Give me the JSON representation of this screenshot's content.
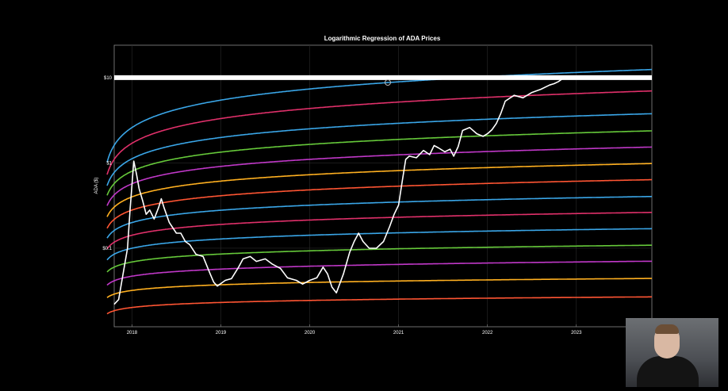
{
  "chart_data": {
    "type": "line",
    "title": "Logarithmic Regression of ADA Prices",
    "xlabel": "",
    "ylabel": "ADA ($)",
    "yscale": "log",
    "xlim": [
      2017.8,
      2023.85
    ],
    "ylim": [
      0.012,
      24
    ],
    "x_ticks": [
      "2018",
      "2019",
      "2020",
      "2021",
      "2022",
      "2023"
    ],
    "y_ticks": [
      "$0.1",
      "$1",
      "$10"
    ],
    "grid": true,
    "background": "#000000",
    "highlight_line": {
      "y": 10,
      "color": "#ffffff"
    },
    "bands": [
      {
        "color": "#ff5533",
        "y_2018": 0.0202,
        "y_2023": 0.0265
      },
      {
        "color": "#ffb020",
        "y_2018": 0.032,
        "y_2023": 0.0435
      },
      {
        "color": "#c038c8",
        "y_2018": 0.047,
        "y_2023": 0.069
      },
      {
        "color": "#66c93a",
        "y_2018": 0.069,
        "y_2023": 0.106
      },
      {
        "color": "#3aa6e8",
        "y_2018": 0.1,
        "y_2023": 0.165
      },
      {
        "color": "#e0306a",
        "y_2018": 0.142,
        "y_2023": 0.255
      },
      {
        "color": "#3aa6e8",
        "y_2018": 0.2,
        "y_2023": 0.39
      },
      {
        "color": "#ff5533",
        "y_2018": 0.28,
        "y_2023": 0.61
      },
      {
        "color": "#ffb020",
        "y_2018": 0.4,
        "y_2023": 0.94
      },
      {
        "color": "#c038c8",
        "y_2018": 0.57,
        "y_2023": 1.46
      },
      {
        "color": "#66c93a",
        "y_2018": 0.8,
        "y_2023": 2.25
      },
      {
        "color": "#3aa6e8",
        "y_2018": 1.12,
        "y_2023": 3.55
      },
      {
        "color": "#e0306a",
        "y_2018": 1.7,
        "y_2023": 6.5
      },
      {
        "color": "#3aa6e8",
        "y_2018": 2.6,
        "y_2023": 11.5
      }
    ],
    "series": [
      {
        "color": "#ffffff",
        "x": [
          2017.8,
          2017.85,
          2017.9,
          2017.95,
          2017.98,
          2018.0,
          2018.02,
          2018.05,
          2018.08,
          2018.12,
          2018.16,
          2018.2,
          2018.25,
          2018.3,
          2018.33,
          2018.36,
          2018.42,
          2018.5,
          2018.55,
          2018.6,
          2018.65,
          2018.72,
          2018.8,
          2018.88,
          2018.92,
          2018.96,
          2019.05,
          2019.12,
          2019.2,
          2019.25,
          2019.33,
          2019.4,
          2019.5,
          2019.58,
          2019.67,
          2019.75,
          2019.85,
          2019.92,
          2020.0,
          2020.08,
          2020.15,
          2020.2,
          2020.25,
          2020.3,
          2020.38,
          2020.45,
          2020.5,
          2020.55,
          2020.6,
          2020.67,
          2020.75,
          2020.83,
          2020.9,
          2020.95,
          2021.0,
          2021.04,
          2021.08,
          2021.12,
          2021.2,
          2021.28,
          2021.35,
          2021.4,
          2021.45,
          2021.52,
          2021.58,
          2021.62,
          2021.67,
          2021.72,
          2021.8,
          2021.88,
          2021.95,
          2022.0,
          2022.05,
          2022.1,
          2022.15,
          2022.2,
          2022.3,
          2022.4,
          2022.5,
          2022.6,
          2022.7,
          2022.75,
          2022.8,
          2022.85
        ],
        "y": [
          0.022,
          0.025,
          0.05,
          0.1,
          0.3,
          0.55,
          1.05,
          0.75,
          0.5,
          0.36,
          0.25,
          0.28,
          0.22,
          0.3,
          0.38,
          0.3,
          0.2,
          0.15,
          0.15,
          0.12,
          0.11,
          0.085,
          0.08,
          0.05,
          0.04,
          0.036,
          0.042,
          0.044,
          0.06,
          0.075,
          0.08,
          0.07,
          0.075,
          0.065,
          0.058,
          0.045,
          0.042,
          0.038,
          0.042,
          0.045,
          0.06,
          0.05,
          0.035,
          0.03,
          0.05,
          0.09,
          0.12,
          0.15,
          0.12,
          0.1,
          0.1,
          0.12,
          0.18,
          0.25,
          0.32,
          0.6,
          1.1,
          1.2,
          1.15,
          1.4,
          1.25,
          1.6,
          1.5,
          1.35,
          1.45,
          1.2,
          1.55,
          2.4,
          2.6,
          2.2,
          2.05,
          2.2,
          2.45,
          2.9,
          3.8,
          5.3,
          6.2,
          5.8,
          6.7,
          7.3,
          8.2,
          8.5,
          9.0,
          9.8
        ]
      }
    ]
  }
}
